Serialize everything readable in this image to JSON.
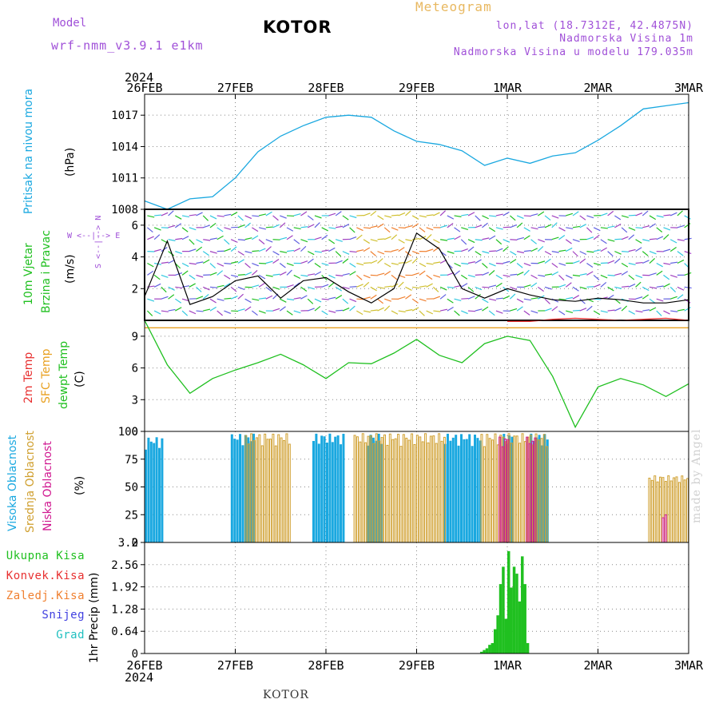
{
  "header": {
    "model_label": "Model",
    "model_version": "wrf-nmm_v3.9.1 e1km",
    "title": "KOTOR",
    "meteogram_label": "Meteogram",
    "coords": "lon,lat (18.7312E, 42.4875N)",
    "altitude": "Nadmorska Visina 1m",
    "model_altitude": "Nadmorska Visina u modelu 179.035m"
  },
  "footer": {
    "station": "KOTOR",
    "made_by": "made by Angel"
  },
  "colors": {
    "pressure": "#1aa8e0",
    "temp2m": "#e83030",
    "sfc": "#e8a020",
    "dewpt": "#20c020",
    "cloud_high": "#1aa8e0",
    "cloud_mid": "#d0a030",
    "cloud_low": "#d01890",
    "precip_total": "#20c020",
    "precip_conv": "#e83030",
    "precip_frozen": "#f08030",
    "precip_snow": "#4040e0",
    "precip_graupel": "#20c0c0",
    "title_purple": "#a050d8"
  },
  "x_axis": {
    "year": "2024",
    "ticks": [
      "26FEB",
      "27FEB",
      "28FEB",
      "29FEB",
      "1MAR",
      "2MAR",
      "3MAR"
    ]
  },
  "panels": {
    "pressure": {
      "label": "Pritisak na nivou mora",
      "unit": "(hPa)",
      "ticks": [
        "1008",
        "1011",
        "1014",
        "1017"
      ]
    },
    "wind": {
      "label1": "10m Vjetar",
      "label2": "Brzina i Pravac",
      "unit": "(m/s)",
      "ticks": [
        "2",
        "4",
        "6"
      ],
      "compass": "S <--|--> N  W <--|--> E"
    },
    "temp": {
      "label1": "2m Temp",
      "label2": "SFC Temp",
      "label3": "dewpt Temp",
      "unit": "(C)",
      "ticks": [
        "0",
        "3",
        "6",
        "9"
      ]
    },
    "cloud": {
      "label1": "Visoka Oblacnost",
      "label2": "Srednja Oblacnost",
      "label3": "Niska Oblacnost",
      "unit": "(%)",
      "ticks": [
        "0",
        "25",
        "50",
        "75",
        "100"
      ]
    },
    "precip": {
      "axis_label": "1hr Precip (mm)",
      "ticks": [
        "0",
        "0.64",
        "1.28",
        "1.92",
        "2.56",
        "3.2"
      ],
      "legend": [
        "Ukupna Kisa",
        "Konvek.Kisa",
        "Zaledj.Kisa",
        "Snijeg",
        "Grad"
      ]
    }
  },
  "chart_data": [
    {
      "type": "line",
      "title": "Pritisak na nivou mora",
      "ylabel": "(hPa)",
      "x_days": [
        0,
        0.25,
        0.5,
        0.75,
        1.0,
        1.25,
        1.5,
        1.75,
        2.0,
        2.25,
        2.5,
        2.75,
        3.0,
        3.25,
        3.5,
        3.75,
        4.0,
        4.25,
        4.5,
        4.75,
        5.0,
        5.25,
        5.5,
        5.75,
        6.0
      ],
      "ylim": [
        1008,
        1019
      ],
      "series": [
        {
          "values": [
            1008.8,
            1008.0,
            1009.0,
            1009.2,
            1011.0,
            1013.5,
            1015.0,
            1016.0,
            1016.8,
            1017.0,
            1016.8,
            1015.5,
            1014.5,
            1014.2,
            1013.6,
            1012.2,
            1012.9,
            1012.4,
            1013.1,
            1013.4,
            1014.6,
            1016.0,
            1017.6,
            1017.9,
            1018.2
          ]
        }
      ]
    },
    {
      "type": "line",
      "title": "10m Vjetar Brzina i Pravac",
      "ylabel": "(m/s)",
      "x_days": [
        0,
        0.25,
        0.5,
        0.75,
        1.0,
        1.25,
        1.5,
        1.75,
        2.0,
        2.25,
        2.5,
        2.75,
        3.0,
        3.25,
        3.5,
        3.75,
        4.0,
        4.25,
        4.5,
        4.75,
        5.0,
        5.25,
        5.5,
        5.75,
        6.0
      ],
      "ylim": [
        0,
        7
      ],
      "series": [
        {
          "values": [
            1.5,
            5.0,
            1.0,
            1.5,
            2.5,
            2.8,
            1.4,
            2.5,
            2.7,
            1.8,
            1.1,
            2.0,
            5.5,
            4.5,
            2.0,
            1.4,
            2.0,
            1.6,
            1.3,
            1.2,
            1.4,
            1.3,
            1.1,
            1.1,
            1.3
          ]
        }
      ]
    },
    {
      "type": "line",
      "title": "2m Temp / SFC Temp / dewpt Temp",
      "ylabel": "(C)",
      "x_days": [
        0,
        0.25,
        0.5,
        0.75,
        1.0,
        1.25,
        1.5,
        1.75,
        2.0,
        2.25,
        2.5,
        2.75,
        3.0,
        3.25,
        3.5,
        3.75,
        4.0,
        4.25,
        4.5,
        4.75,
        5.0,
        5.25,
        5.5,
        5.75,
        6.0
      ],
      "ylim": [
        0,
        10.5
      ],
      "series": [
        {
          "name": "2m Temp",
          "values": [
            null,
            null,
            null,
            null,
            null,
            null,
            null,
            null,
            null,
            null,
            null,
            null,
            null,
            null,
            null,
            null,
            10.4,
            10.4,
            10.6,
            10.7,
            10.6,
            10.5,
            10.6,
            10.7,
            10.5
          ]
        },
        {
          "name": "SFC Temp",
          "values": [
            9.8,
            9.8,
            9.8,
            9.8,
            9.8,
            9.8,
            9.8,
            9.8,
            9.8,
            9.8,
            9.8,
            9.8,
            9.8,
            9.8,
            9.8,
            9.8,
            9.8,
            9.8,
            9.8,
            9.8,
            9.8,
            9.8,
            9.8,
            9.8,
            9.8
          ]
        },
        {
          "name": "dewpt Temp",
          "values": [
            10.5,
            6.3,
            3.6,
            5.0,
            5.8,
            6.5,
            7.3,
            6.3,
            5.0,
            6.5,
            6.4,
            7.4,
            8.7,
            7.2,
            6.5,
            8.3,
            9.0,
            8.6,
            5.2,
            0.4,
            4.2,
            5.0,
            4.4,
            3.3,
            4.5
          ]
        }
      ]
    },
    {
      "type": "bar",
      "title": "Visoka / Srednja / Niska Oblacnost",
      "ylabel": "(%)",
      "ylim": [
        0,
        100
      ],
      "series": [
        {
          "name": "Visoka Oblacnost",
          "segments": [
            [
              0.0,
              0.2,
              95
            ],
            [
              0.95,
              1.2,
              98
            ],
            [
              1.85,
              2.2,
              98
            ],
            [
              2.45,
              2.6,
              98
            ],
            [
              3.3,
              3.7,
              98
            ],
            [
              3.95,
              4.05,
              98
            ],
            [
              4.25,
              4.45,
              98
            ]
          ]
        },
        {
          "name": "Srednja Oblacnost",
          "segments": [
            [
              1.1,
              1.6,
              98
            ],
            [
              2.3,
              3.3,
              98
            ],
            [
              3.7,
              4.45,
              98
            ],
            [
              5.55,
              6.0,
              60
            ]
          ]
        },
        {
          "name": "Niska Oblacnost",
          "segments": [
            [
              3.9,
              4.0,
              95
            ],
            [
              4.2,
              4.3,
              95
            ],
            [
              5.7,
              5.75,
              25
            ]
          ]
        }
      ]
    },
    {
      "type": "bar",
      "title": "1hr Precip",
      "ylabel": "(mm)",
      "ylim": [
        0,
        3.2
      ],
      "series": [
        {
          "name": "Ukupna Kisa",
          "x_days": [
            3.7,
            3.73,
            3.76,
            3.79,
            3.82,
            3.85,
            3.88,
            3.91,
            3.94,
            3.97,
            4.0,
            4.03,
            4.06,
            4.09,
            4.12,
            4.15,
            4.18,
            4.21
          ],
          "values": [
            0.05,
            0.1,
            0.15,
            0.25,
            0.3,
            0.7,
            1.1,
            2.0,
            2.5,
            1.0,
            2.95,
            1.9,
            2.5,
            2.3,
            1.5,
            2.8,
            2.0,
            0.3
          ]
        }
      ]
    }
  ]
}
